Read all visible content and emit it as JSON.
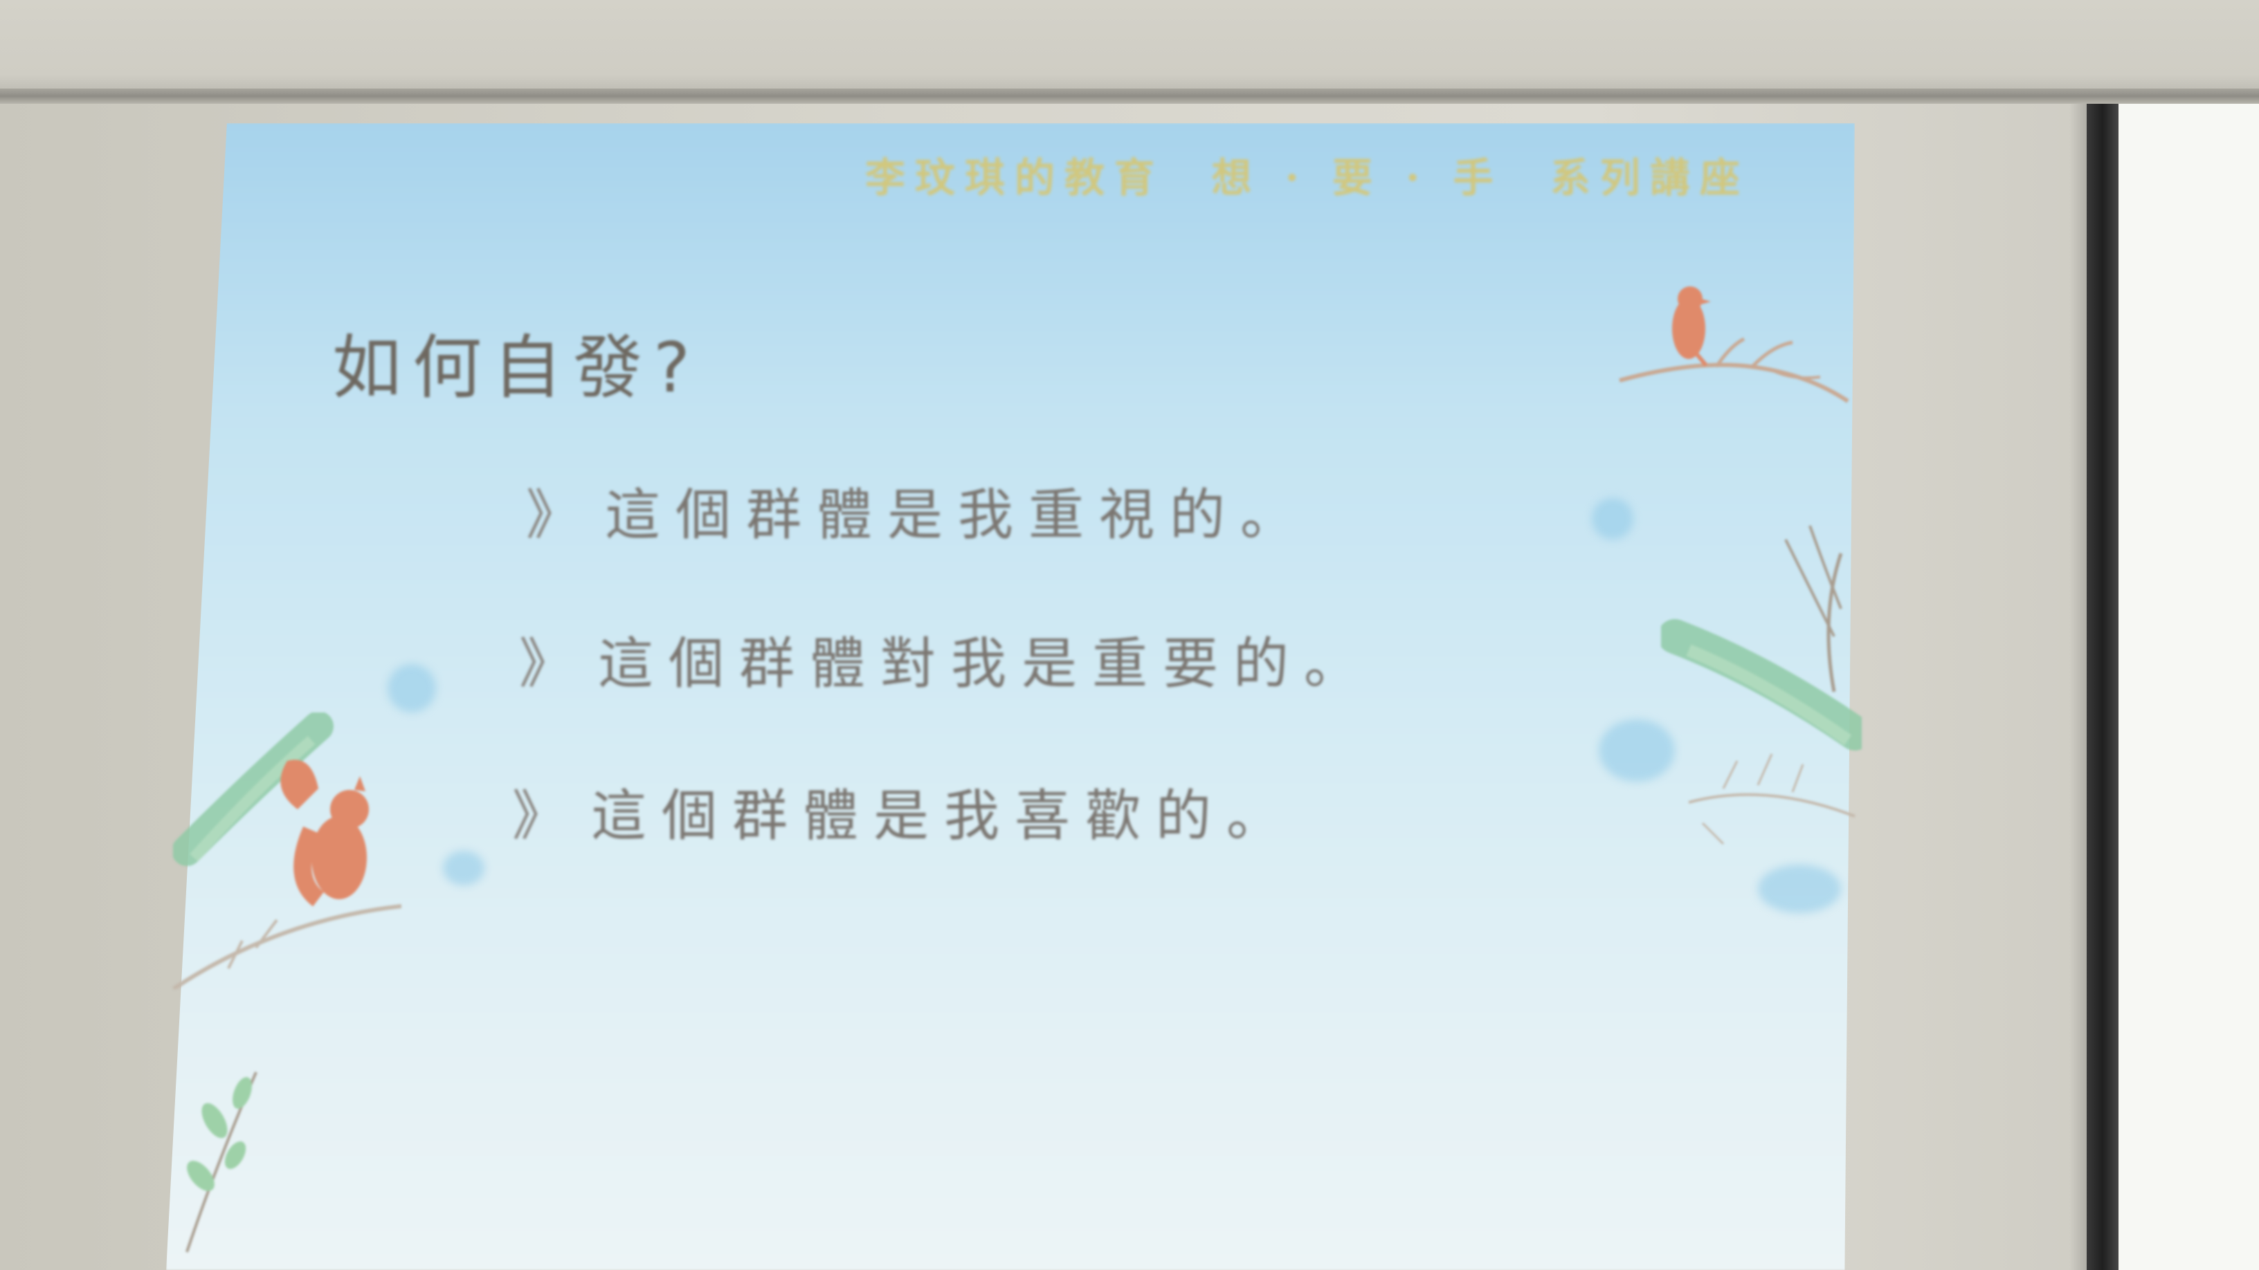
{
  "slide": {
    "header": "李玟琪的教育  想 · 要 · 手  系列講座",
    "title": "如何自發?",
    "bullets": [
      {
        "marker": "》",
        "text": "這個群體是我重視的。"
      },
      {
        "marker": "》",
        "text": "這個群體對我是重要的。"
      },
      {
        "marker": "》",
        "text": "這個群體是我喜歡的。"
      }
    ]
  },
  "decorations": {
    "bird_icon": "bird-icon",
    "squirrel_icon": "squirrel-icon",
    "branch_icon": "branch-icon",
    "pine_icon": "pine-branch-icon"
  },
  "colors": {
    "screen_top": "#a7d3ec",
    "screen_bottom": "#ecf4f6",
    "header_text": "#d8c56a",
    "title_text": "#6e6860",
    "bullet_text": "#7b7671",
    "animal": "#e08a6a",
    "pine": "#8fcaa6",
    "wall": "#cfcdc4",
    "door_frame": "#2a2a2a"
  }
}
